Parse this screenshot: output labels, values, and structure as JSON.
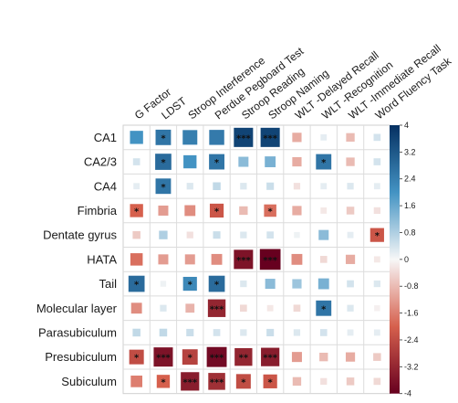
{
  "chart_data": {
    "type": "heatmap",
    "title": "",
    "xlabel": "",
    "ylabel": "",
    "columns": [
      "G Factor",
      "LDST",
      "Stroop Interference",
      "Perdue Pegboard Test",
      "Stroop Reading",
      "Stroop Naming",
      "WLT -Delayed Recall",
      "WLT -Recognition",
      "WLT -Immediate Recall",
      "Word Fluency Task"
    ],
    "rows": [
      "CA1",
      "CA2/3",
      "CA4",
      "Fimbria",
      "Dentate gyrus",
      "HATA",
      "Tail",
      "Molecular layer",
      "Parasubiculum",
      "Presubiculum",
      "Subiculum"
    ],
    "values": [
      [
        2.0,
        2.6,
        2.4,
        2.5,
        3.6,
        3.6,
        -1.0,
        0.2,
        -0.8,
        0.4
      ],
      [
        0.4,
        2.8,
        2.0,
        2.6,
        1.2,
        1.4,
        -1.0,
        2.6,
        -0.8,
        0.4
      ],
      [
        0.2,
        2.6,
        0.3,
        0.6,
        0.3,
        0.5,
        -0.3,
        0.2,
        0.3,
        0.2
      ],
      [
        -2.0,
        -1.2,
        -1.4,
        -2.2,
        -0.8,
        -1.8,
        -1.0,
        -0.2,
        -0.6,
        -0.3
      ],
      [
        -0.6,
        0.8,
        -0.3,
        0.5,
        0.3,
        0.4,
        0.1,
        1.2,
        0.2,
        -2.2
      ],
      [
        -1.8,
        -1.2,
        -1.2,
        -1.4,
        -3.6,
        -4.0,
        -1.4,
        -0.4,
        -1.0,
        -0.2
      ],
      [
        2.8,
        0.1,
        2.2,
        2.8,
        0.3,
        1.2,
        1.0,
        1.4,
        0.4,
        0.3
      ],
      [
        -1.4,
        0.3,
        -0.9,
        -3.2,
        -0.4,
        -0.2,
        -0.4,
        2.6,
        0.3,
        -0.1
      ],
      [
        0.6,
        0.6,
        0.5,
        0.4,
        0.3,
        0.5,
        0.3,
        0.4,
        0.2,
        0.2
      ],
      [
        -2.4,
        -3.6,
        -2.6,
        -3.8,
        -3.2,
        -3.4,
        -1.2,
        -0.8,
        -1.0,
        -0.6
      ],
      [
        -1.6,
        -2.0,
        -3.4,
        -3.0,
        -2.4,
        -2.2,
        -0.8,
        -0.3,
        -0.6,
        -0.4
      ]
    ],
    "annotations": [
      [
        "",
        "*",
        "",
        "",
        "***",
        "***",
        "",
        "",
        "",
        ""
      ],
      [
        "",
        "*",
        "",
        "*",
        "",
        "",
        "",
        "*",
        "",
        ""
      ],
      [
        "",
        "*",
        "",
        "",
        "",
        "",
        "",
        "",
        "",
        ""
      ],
      [
        "*",
        "",
        "",
        "*",
        "",
        "*",
        "",
        "",
        "",
        ""
      ],
      [
        "",
        "",
        "",
        "",
        "",
        "",
        "",
        "",
        "",
        "*"
      ],
      [
        "",
        "",
        "",
        "",
        "***",
        "***",
        "",
        "",
        "",
        ""
      ],
      [
        "*",
        "",
        "*",
        "*",
        "",
        "",
        "",
        "",
        "",
        ""
      ],
      [
        "",
        "",
        "",
        "***",
        "",
        "",
        "",
        "*",
        "",
        ""
      ],
      [
        "",
        "",
        "",
        "",
        "",
        "",
        "",
        "",
        "",
        ""
      ],
      [
        "*",
        "***",
        "*",
        "***",
        "**",
        "***",
        "",
        "",
        "",
        ""
      ],
      [
        "",
        "*",
        "***",
        "***",
        "*",
        "*",
        "",
        "",
        "",
        ""
      ]
    ],
    "colorbar": {
      "range": [
        -4,
        4
      ],
      "ticks": [
        "4",
        "3.2",
        "2.4",
        "1.6",
        "0.8",
        "0",
        "-0.8",
        "-1.6",
        "-2.4",
        "-3.2",
        "-4"
      ],
      "colors": {
        "negative_max": "#67001f",
        "negative_mid": "#d6604d",
        "neutral": "#f7f7f7",
        "positive_mid": "#4393c3",
        "positive_max": "#053061"
      }
    },
    "grid": true,
    "legend": "right"
  }
}
